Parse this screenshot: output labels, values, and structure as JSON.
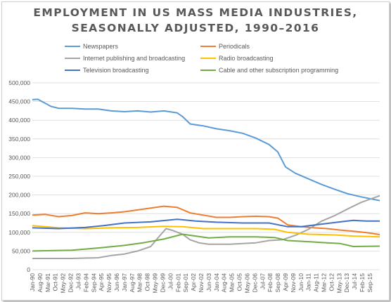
{
  "title_lines": [
    "EMPLOYMENT IN US MASS MEDIA INDUSTRIES,",
    "SEASONALLY ADJUSTED, 1990–2016"
  ],
  "chart_data": {
    "type": "line",
    "title": "EMPLOYMENT IN US MASS MEDIA INDUSTRIES, SEASONALLY ADJUSTED, 1990–2016",
    "xlabel": "",
    "ylabel": "",
    "ylim": [
      0,
      500000
    ],
    "yticks": [
      0,
      50000,
      100000,
      150000,
      200000,
      250000,
      300000,
      350000,
      400000,
      450000,
      500000
    ],
    "ytick_labels": [
      "0",
      "50,000",
      "100,000",
      "150,000",
      "200,000",
      "250,000",
      "300,000",
      "350,000",
      "400,000",
      "450,000",
      "500,000"
    ],
    "x_range": [
      "1990-01",
      "2016-06"
    ],
    "x_tick_labels": [
      "Jan-90",
      "Aug-90",
      "Mar-91",
      "Oct-91",
      "May-92",
      "Dec-92",
      "Jul-93",
      "Feb-94",
      "Sep-94",
      "Apr-95",
      "Nov-95",
      "Jun-96",
      "Jan-97",
      "Aug-97",
      "Mar-98",
      "Oct-98",
      "May-99",
      "Dec-99",
      "Jul-00",
      "Feb-01",
      "Sep-01",
      "Apr-02",
      "Nov-02",
      "Jun-03",
      "Jan-04",
      "Aug-04",
      "Mar-05",
      "Oct-05",
      "May-06",
      "Dec-06",
      "Jul-07",
      "Feb-08",
      "Sep-08",
      "Apr-09",
      "Nov-09",
      "Jun-10",
      "Jan-11",
      "Aug-11",
      "Mar-12",
      "Oct-12",
      "May-13",
      "Dec-13",
      "Jul-14",
      "Feb-15",
      "Sep-15"
    ],
    "grid": true,
    "legend_position": "top",
    "series": [
      {
        "name": "Newspapers",
        "color": "#5b9bd5",
        "points": [
          [
            "1990-01",
            455000
          ],
          [
            "1990-06",
            456000
          ],
          [
            "1991-01",
            445000
          ],
          [
            "1991-06",
            437000
          ],
          [
            "1992-01",
            432000
          ],
          [
            "1993-01",
            432000
          ],
          [
            "1994-01",
            430000
          ],
          [
            "1995-01",
            430000
          ],
          [
            "1996-01",
            425000
          ],
          [
            "1997-01",
            423000
          ],
          [
            "1998-01",
            425000
          ],
          [
            "1999-01",
            422000
          ],
          [
            "2000-01",
            425000
          ],
          [
            "2001-01",
            420000
          ],
          [
            "2001-06",
            410000
          ],
          [
            "2002-01",
            390000
          ],
          [
            "2003-01",
            385000
          ],
          [
            "2004-01",
            377000
          ],
          [
            "2005-01",
            372000
          ],
          [
            "2006-01",
            365000
          ],
          [
            "2007-01",
            352000
          ],
          [
            "2008-01",
            335000
          ],
          [
            "2008-09",
            315000
          ],
          [
            "2009-04",
            275000
          ],
          [
            "2010-01",
            258000
          ],
          [
            "2011-01",
            243000
          ],
          [
            "2012-01",
            228000
          ],
          [
            "2013-01",
            215000
          ],
          [
            "2014-01",
            203000
          ],
          [
            "2015-01",
            195000
          ],
          [
            "2016-06",
            185000
          ]
        ]
      },
      {
        "name": "Periodicals",
        "color": "#ed7d31",
        "points": [
          [
            "1990-01",
            146000
          ],
          [
            "1991-01",
            148000
          ],
          [
            "1992-01",
            142000
          ],
          [
            "1993-01",
            145000
          ],
          [
            "1994-01",
            152000
          ],
          [
            "1995-01",
            150000
          ],
          [
            "1996-01",
            152000
          ],
          [
            "1997-01",
            155000
          ],
          [
            "1998-01",
            160000
          ],
          [
            "1999-01",
            165000
          ],
          [
            "2000-01",
            170000
          ],
          [
            "2001-01",
            167000
          ],
          [
            "2002-01",
            152000
          ],
          [
            "2003-01",
            146000
          ],
          [
            "2004-01",
            140000
          ],
          [
            "2005-01",
            140000
          ],
          [
            "2006-01",
            142000
          ],
          [
            "2007-01",
            143000
          ],
          [
            "2008-01",
            142000
          ],
          [
            "2008-09",
            138000
          ],
          [
            "2009-06",
            120000
          ],
          [
            "2010-06",
            115000
          ],
          [
            "2011-06",
            112000
          ],
          [
            "2012-06",
            110000
          ],
          [
            "2013-06",
            106000
          ],
          [
            "2014-06",
            103000
          ],
          [
            "2015-06",
            99000
          ],
          [
            "2016-06",
            94000
          ]
        ]
      },
      {
        "name": "Internet publishing and broadcasting",
        "color": "#a5a5a5",
        "points": [
          [
            "1990-01",
            30000
          ],
          [
            "1993-01",
            30000
          ],
          [
            "1995-01",
            32000
          ],
          [
            "1996-01",
            38000
          ],
          [
            "1997-01",
            42000
          ],
          [
            "1998-01",
            50000
          ],
          [
            "1999-01",
            62000
          ],
          [
            "1999-09",
            90000
          ],
          [
            "2000-03",
            110000
          ],
          [
            "2000-09",
            105000
          ],
          [
            "2001-06",
            95000
          ],
          [
            "2002-01",
            80000
          ],
          [
            "2002-09",
            72000
          ],
          [
            "2003-06",
            68000
          ],
          [
            "2005-01",
            68000
          ],
          [
            "2006-01",
            70000
          ],
          [
            "2007-01",
            72000
          ],
          [
            "2008-01",
            78000
          ],
          [
            "2009-01",
            80000
          ],
          [
            "2010-01",
            92000
          ],
          [
            "2011-01",
            108000
          ],
          [
            "2012-01",
            130000
          ],
          [
            "2013-01",
            145000
          ],
          [
            "2014-01",
            163000
          ],
          [
            "2015-01",
            180000
          ],
          [
            "2016-06",
            198000
          ]
        ]
      },
      {
        "name": "Radio broadcasting",
        "color": "#ffc000",
        "points": [
          [
            "1990-01",
            118000
          ],
          [
            "1992-01",
            112000
          ],
          [
            "1994-01",
            110000
          ],
          [
            "1996-01",
            112000
          ],
          [
            "1998-01",
            113000
          ],
          [
            "2000-01",
            116000
          ],
          [
            "2001-06",
            115000
          ],
          [
            "2003-01",
            110000
          ],
          [
            "2005-01",
            110000
          ],
          [
            "2007-01",
            110000
          ],
          [
            "2008-06",
            108000
          ],
          [
            "2009-06",
            100000
          ],
          [
            "2011-01",
            95000
          ],
          [
            "2013-01",
            93000
          ],
          [
            "2014-06",
            90000
          ],
          [
            "2016-06",
            88000
          ]
        ]
      },
      {
        "name": "Television broadcasting",
        "color": "#4472c4",
        "points": [
          [
            "1990-01",
            112000
          ],
          [
            "1992-01",
            110000
          ],
          [
            "1994-01",
            113000
          ],
          [
            "1995-06",
            118000
          ],
          [
            "1997-01",
            125000
          ],
          [
            "1999-01",
            128000
          ],
          [
            "2001-01",
            135000
          ],
          [
            "2002-06",
            130000
          ],
          [
            "2004-01",
            127000
          ],
          [
            "2006-01",
            125000
          ],
          [
            "2008-01",
            125000
          ],
          [
            "2009-06",
            115000
          ],
          [
            "2010-06",
            115000
          ],
          [
            "2012-01",
            122000
          ],
          [
            "2013-06",
            128000
          ],
          [
            "2014-06",
            132000
          ],
          [
            "2015-06",
            130000
          ],
          [
            "2016-06",
            130000
          ]
        ]
      },
      {
        "name": "Cable and other subscription programming",
        "color": "#70ad47",
        "points": [
          [
            "1990-01",
            50000
          ],
          [
            "1993-01",
            52000
          ],
          [
            "1995-01",
            58000
          ],
          [
            "1997-01",
            65000
          ],
          [
            "1998-06",
            72000
          ],
          [
            "2000-01",
            82000
          ],
          [
            "2001-06",
            95000
          ],
          [
            "2002-06",
            90000
          ],
          [
            "2003-06",
            85000
          ],
          [
            "2005-01",
            88000
          ],
          [
            "2007-01",
            88000
          ],
          [
            "2008-06",
            86000
          ],
          [
            "2009-06",
            78000
          ],
          [
            "2011-01",
            75000
          ],
          [
            "2012-06",
            72000
          ],
          [
            "2013-06",
            70000
          ],
          [
            "2014-06",
            62000
          ],
          [
            "2016-06",
            63000
          ]
        ]
      }
    ]
  }
}
